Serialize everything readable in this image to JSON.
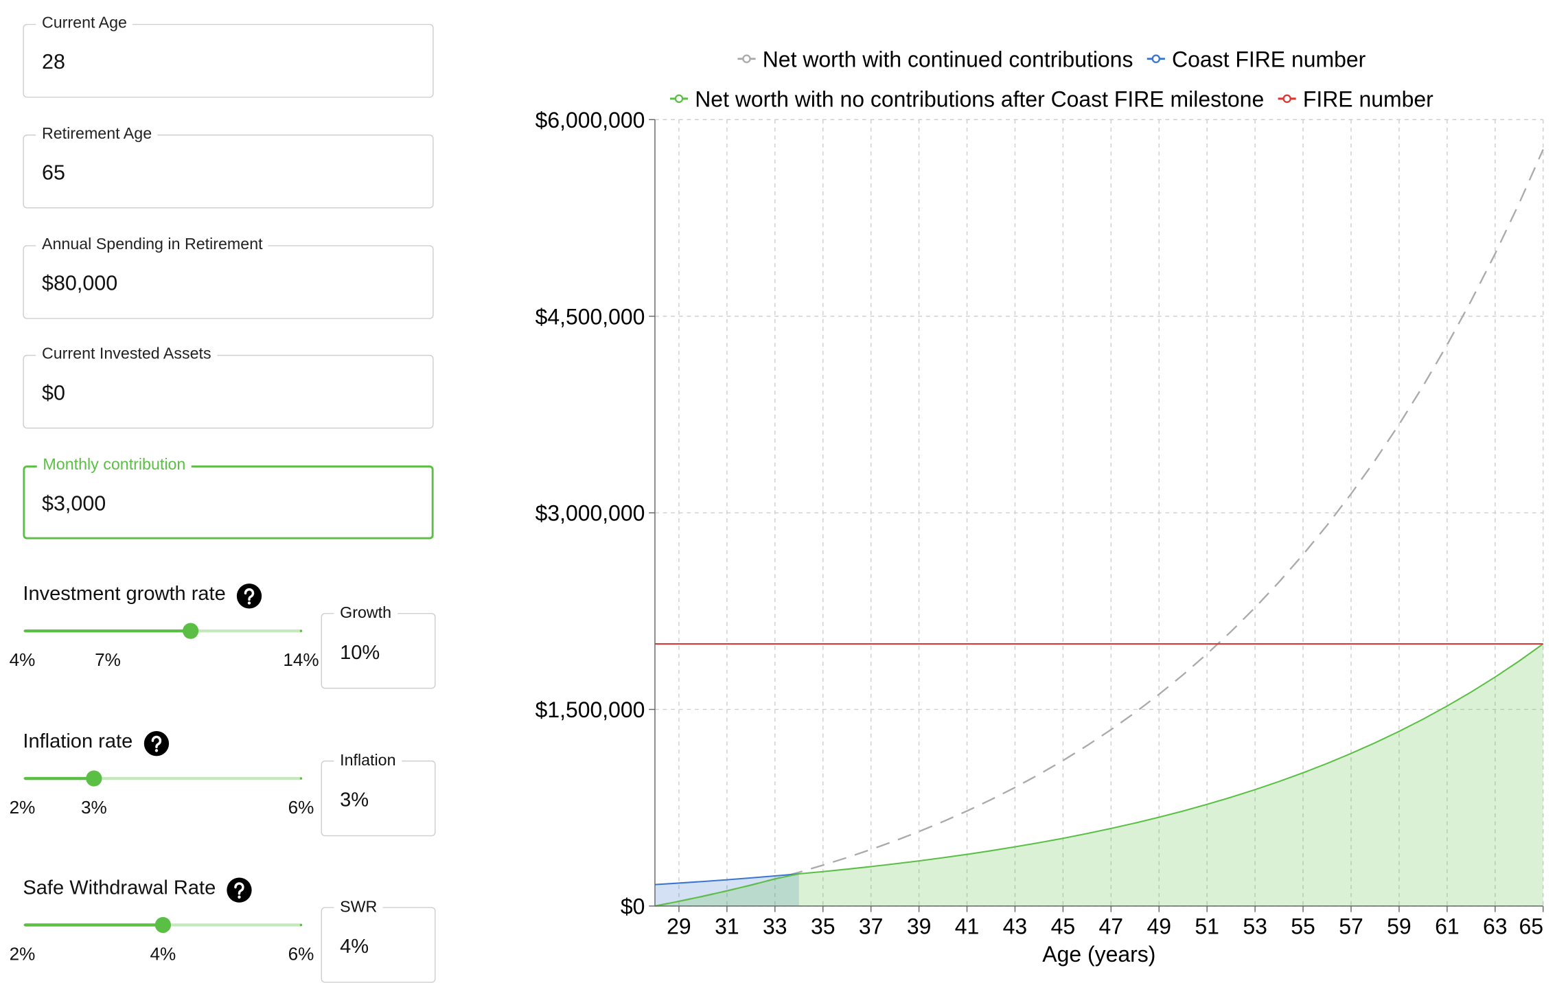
{
  "form": {
    "fields": [
      {
        "label": "Current Age",
        "value": "28"
      },
      {
        "label": "Retirement Age",
        "value": "65"
      },
      {
        "label": "Annual Spending in Retirement",
        "value": "$80,000"
      },
      {
        "label": "Current Invested Assets",
        "value": "$0"
      },
      {
        "label": "Monthly contribution",
        "value": "$3,000",
        "focused": true
      }
    ]
  },
  "sliders": [
    {
      "label": "Investment growth rate",
      "box_label": "Growth",
      "range": [
        4,
        14
      ],
      "value": {
        "value": 10,
        "label": "10%"
      },
      "ticks": [
        {
          "value": 4,
          "label": "4%"
        },
        {
          "value": 7,
          "label": "7%"
        },
        {
          "value": 14,
          "label": "14%"
        }
      ]
    },
    {
      "label": "Inflation rate",
      "box_label": "Inflation",
      "range": [
        2,
        6
      ],
      "value": {
        "value": 3,
        "label": "3%"
      },
      "ticks": [
        {
          "value": 2,
          "label": "2%"
        },
        {
          "value": 3,
          "label": "3%"
        },
        {
          "value": 6,
          "label": "6%"
        }
      ]
    },
    {
      "label": "Safe Withdrawal Rate",
      "box_label": "SWR",
      "range": [
        2,
        6
      ],
      "value": {
        "value": 4,
        "label": "4%"
      },
      "ticks": [
        {
          "value": 2,
          "label": "2%"
        },
        {
          "value": 4,
          "label": "4%"
        },
        {
          "value": 6,
          "label": "6%"
        }
      ]
    }
  ],
  "chart_data": {
    "type": "line",
    "x_label": "Age (years)",
    "x": [
      28,
      29,
      30,
      31,
      32,
      33,
      34,
      35,
      36,
      37,
      38,
      39,
      40,
      41,
      42,
      43,
      44,
      45,
      46,
      47,
      48,
      49,
      50,
      51,
      52,
      53,
      54,
      55,
      56,
      57,
      58,
      59,
      60,
      61,
      62,
      63,
      64,
      65
    ],
    "xlim": [
      28,
      65
    ],
    "xticks": [
      29,
      31,
      33,
      35,
      37,
      39,
      41,
      43,
      45,
      47,
      49,
      51,
      53,
      55,
      57,
      59,
      61,
      63,
      65
    ],
    "ylim": [
      0,
      6000000
    ],
    "yticks": [
      {
        "value": 0,
        "label": "$0"
      },
      {
        "value": 1500000,
        "label": "$1,500,000"
      },
      {
        "value": 3000000,
        "label": "$3,000,000"
      },
      {
        "value": 4500000,
        "label": "$4,500,000"
      },
      {
        "value": 6000000,
        "label": "$6,000,000"
      }
    ],
    "grid": true,
    "series": [
      {
        "name": "Net worth with continued contributions",
        "color": "#aaaaaa",
        "dashed": true,
        "values": [
          0,
          36000,
          74520,
          115700,
          159840,
          207050,
          257500,
          311550,
          369360,
          431230,
          497420,
          568230,
          643990,
          725040,
          811800,
          904630,
          1004000,
          1110240,
          1223950,
          1345610,
          1475830,
          1615180,
          1764210,
          1923690,
          2094390,
          2276960,
          2472390,
          2681450,
          2905100,
          3144500,
          3400640,
          3674630,
          3967880,
          4281580,
          4617300,
          4976530,
          5360860,
          5772140
        ]
      },
      {
        "name": "Coast FIRE number",
        "color": "#3a75d0",
        "area": true,
        "values": [
          163620,
          175070,
          187330,
          200440,
          214470,
          229480,
          245550,
          null,
          null,
          null,
          null,
          null,
          null,
          null,
          null,
          null,
          null,
          null,
          null,
          null,
          null,
          null,
          null,
          null,
          null,
          null,
          null,
          null,
          null,
          null,
          null,
          null,
          null,
          null,
          null,
          null,
          null,
          null
        ]
      },
      {
        "name": "Net worth with no contributions after Coast FIRE milestone",
        "color": "#5bbf45",
        "area": true,
        "values": [
          0,
          36000,
          74520,
          115700,
          159840,
          207050,
          245550,
          262730,
          281120,
          300810,
          321860,
          344390,
          368500,
          394290,
          421900,
          451430,
          483020,
          516840,
          553020,
          591730,
          633150,
          677460,
          724900,
          775640,
          829950,
          888020,
          950160,
          1016670,
          1087840,
          1164010,
          1245490,
          1332710,
          1425920,
          1525790,
          1632650,
          1746880,
          1869160,
          2000000
        ]
      },
      {
        "name": "FIRE number",
        "color": "#e0352f",
        "values": [
          2000000,
          2000000,
          2000000,
          2000000,
          2000000,
          2000000,
          2000000,
          2000000,
          2000000,
          2000000,
          2000000,
          2000000,
          2000000,
          2000000,
          2000000,
          2000000,
          2000000,
          2000000,
          2000000,
          2000000,
          2000000,
          2000000,
          2000000,
          2000000,
          2000000,
          2000000,
          2000000,
          2000000,
          2000000,
          2000000,
          2000000,
          2000000,
          2000000,
          2000000,
          2000000,
          2000000,
          2000000,
          2000000
        ]
      }
    ]
  }
}
